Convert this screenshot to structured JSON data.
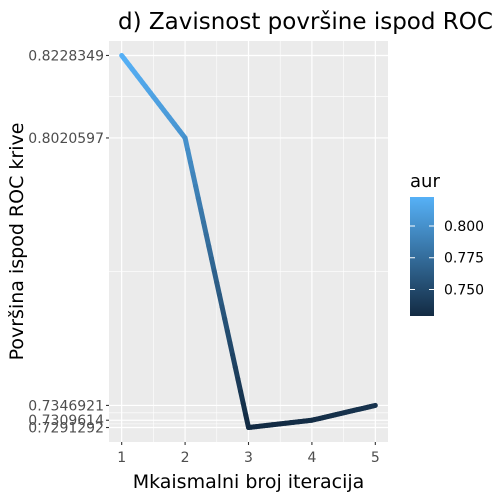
{
  "chart_data": {
    "type": "line",
    "title": "d) Zavisnost površine ispod ROC krive",
    "xlabel": "Mkaismalni broj iteracija",
    "ylabel": "Površina ispod ROC krive",
    "x": [
      1,
      2,
      3,
      4,
      5
    ],
    "series": [
      {
        "values": [
          0.8228349,
          0.8020597,
          0.7291292,
          0.7309614,
          0.7346921
        ]
      }
    ],
    "x_ticks": [
      "1",
      "2",
      "3",
      "4",
      "5"
    ],
    "y_ticks": [
      0.7291292,
      0.7309614,
      0.7346921,
      0.8020597,
      0.8228349
    ],
    "y_tick_labels": [
      "0.7291292",
      "0.7309614",
      "0.7346921",
      "0.8020597",
      "0.8228349"
    ],
    "xlim": [
      0.8,
      5.2
    ],
    "ylim": [
      0.72548,
      0.82648
    ],
    "grid": true,
    "color_scale": {
      "title": "aur",
      "low_color": "#132B43",
      "high_color": "#56B1F7",
      "range": [
        0.7291292,
        0.8228349
      ],
      "ticks": [
        0.75,
        0.775,
        0.8
      ],
      "tick_labels": [
        "0.750",
        "0.775",
        "0.800"
      ]
    },
    "legend_position": "right"
  }
}
